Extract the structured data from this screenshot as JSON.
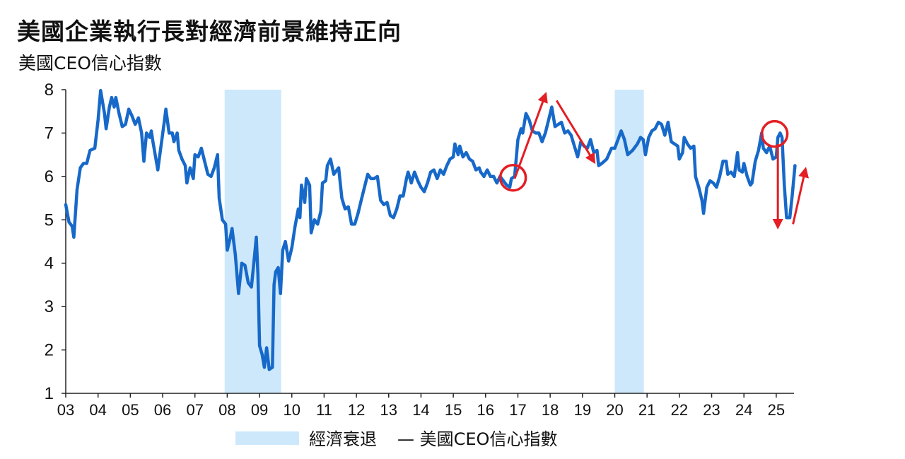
{
  "colors": {
    "line": "#1769C9",
    "recession": "#CDE8FB",
    "annotation": "#E31E24",
    "axis": "#222222"
  },
  "chart_data": {
    "type": "line",
    "title": "美國企業執行長對經濟前景維持正向",
    "subtitle": "美國CEO信心指數",
    "xlabel": "",
    "ylabel": "",
    "ylim": [
      1,
      8
    ],
    "yticks": [
      "1",
      "2",
      "3",
      "4",
      "5",
      "6",
      "7",
      "8"
    ],
    "xticks": [
      "03",
      "04",
      "05",
      "06",
      "07",
      "08",
      "09",
      "10",
      "11",
      "12",
      "13",
      "14",
      "15",
      "16",
      "17",
      "18",
      "19",
      "20",
      "21",
      "22",
      "23",
      "24",
      "25"
    ],
    "xlim": [
      2003.0,
      2025.55
    ],
    "grid": false,
    "legend": {
      "placement": "bottom-center",
      "recession_label": "經濟衰退",
      "series_label": "— 美國CEO信心指數"
    },
    "recessions": [
      [
        2007.92,
        2009.67
      ],
      [
        2020.0,
        2020.9
      ]
    ],
    "series": [
      {
        "name": "美國CEO信心指數",
        "points": [
          [
            2003.0,
            5.35
          ],
          [
            2003.1,
            4.95
          ],
          [
            2003.2,
            4.85
          ],
          [
            2003.25,
            4.6
          ],
          [
            2003.35,
            5.7
          ],
          [
            2003.45,
            6.2
          ],
          [
            2003.55,
            6.3
          ],
          [
            2003.65,
            6.3
          ],
          [
            2003.75,
            6.6
          ],
          [
            2003.9,
            6.65
          ],
          [
            2004.0,
            7.3
          ],
          [
            2004.08,
            7.98
          ],
          [
            2004.2,
            7.45
          ],
          [
            2004.25,
            7.1
          ],
          [
            2004.35,
            7.6
          ],
          [
            2004.42,
            7.82
          ],
          [
            2004.5,
            7.6
          ],
          [
            2004.55,
            7.82
          ],
          [
            2004.65,
            7.45
          ],
          [
            2004.75,
            7.15
          ],
          [
            2004.85,
            7.2
          ],
          [
            2004.95,
            7.55
          ],
          [
            2005.05,
            7.4
          ],
          [
            2005.15,
            7.2
          ],
          [
            2005.25,
            7.35
          ],
          [
            2005.35,
            7.0
          ],
          [
            2005.42,
            6.35
          ],
          [
            2005.5,
            7.0
          ],
          [
            2005.6,
            6.9
          ],
          [
            2005.65,
            7.05
          ],
          [
            2005.7,
            6.8
          ],
          [
            2005.85,
            6.15
          ],
          [
            2005.95,
            6.7
          ],
          [
            2006.05,
            7.25
          ],
          [
            2006.1,
            7.55
          ],
          [
            2006.2,
            7.0
          ],
          [
            2006.3,
            7.0
          ],
          [
            2006.35,
            6.8
          ],
          [
            2006.45,
            7.0
          ],
          [
            2006.5,
            6.6
          ],
          [
            2006.6,
            6.4
          ],
          [
            2006.7,
            6.25
          ],
          [
            2006.75,
            5.85
          ],
          [
            2006.85,
            6.2
          ],
          [
            2006.95,
            5.95
          ],
          [
            2007.0,
            6.5
          ],
          [
            2007.1,
            6.45
          ],
          [
            2007.2,
            6.65
          ],
          [
            2007.3,
            6.35
          ],
          [
            2007.4,
            6.05
          ],
          [
            2007.5,
            6.0
          ],
          [
            2007.6,
            6.2
          ],
          [
            2007.7,
            6.5
          ],
          [
            2007.75,
            5.5
          ],
          [
            2007.85,
            5.0
          ],
          [
            2007.95,
            4.9
          ],
          [
            2008.0,
            4.3
          ],
          [
            2008.1,
            4.6
          ],
          [
            2008.15,
            4.8
          ],
          [
            2008.25,
            4.2
          ],
          [
            2008.35,
            3.3
          ],
          [
            2008.45,
            4.0
          ],
          [
            2008.55,
            3.95
          ],
          [
            2008.65,
            3.55
          ],
          [
            2008.75,
            3.45
          ],
          [
            2008.85,
            4.2
          ],
          [
            2008.9,
            4.6
          ],
          [
            2008.95,
            3.75
          ],
          [
            2009.0,
            2.1
          ],
          [
            2009.08,
            1.9
          ],
          [
            2009.15,
            1.6
          ],
          [
            2009.22,
            2.05
          ],
          [
            2009.3,
            1.55
          ],
          [
            2009.4,
            1.6
          ],
          [
            2009.45,
            3.5
          ],
          [
            2009.5,
            3.8
          ],
          [
            2009.58,
            3.9
          ],
          [
            2009.65,
            3.3
          ],
          [
            2009.72,
            4.3
          ],
          [
            2009.8,
            4.5
          ],
          [
            2009.9,
            4.05
          ],
          [
            2010.0,
            4.35
          ],
          [
            2010.1,
            4.85
          ],
          [
            2010.2,
            5.25
          ],
          [
            2010.25,
            5.05
          ],
          [
            2010.3,
            5.8
          ],
          [
            2010.4,
            5.4
          ],
          [
            2010.45,
            5.95
          ],
          [
            2010.55,
            5.8
          ],
          [
            2010.6,
            4.7
          ],
          [
            2010.7,
            5.0
          ],
          [
            2010.8,
            4.9
          ],
          [
            2010.9,
            5.2
          ],
          [
            2010.95,
            5.85
          ],
          [
            2011.05,
            5.9
          ],
          [
            2011.1,
            6.25
          ],
          [
            2011.2,
            6.4
          ],
          [
            2011.3,
            6.05
          ],
          [
            2011.35,
            6.1
          ],
          [
            2011.45,
            6.2
          ],
          [
            2011.55,
            5.5
          ],
          [
            2011.65,
            5.25
          ],
          [
            2011.75,
            5.3
          ],
          [
            2011.85,
            4.9
          ],
          [
            2011.95,
            4.9
          ],
          [
            2012.05,
            5.15
          ],
          [
            2012.15,
            5.45
          ],
          [
            2012.25,
            5.75
          ],
          [
            2012.35,
            6.05
          ],
          [
            2012.45,
            5.95
          ],
          [
            2012.55,
            5.95
          ],
          [
            2012.65,
            6.0
          ],
          [
            2012.75,
            5.45
          ],
          [
            2012.85,
            5.35
          ],
          [
            2012.95,
            5.4
          ],
          [
            2013.05,
            5.1
          ],
          [
            2013.15,
            5.05
          ],
          [
            2013.25,
            5.25
          ],
          [
            2013.35,
            5.55
          ],
          [
            2013.45,
            5.55
          ],
          [
            2013.55,
            5.95
          ],
          [
            2013.6,
            6.1
          ],
          [
            2013.7,
            5.85
          ],
          [
            2013.8,
            6.1
          ],
          [
            2013.9,
            5.9
          ],
          [
            2014.0,
            5.75
          ],
          [
            2014.1,
            5.65
          ],
          [
            2014.2,
            5.85
          ],
          [
            2014.3,
            6.1
          ],
          [
            2014.4,
            6.15
          ],
          [
            2014.5,
            5.95
          ],
          [
            2014.6,
            6.15
          ],
          [
            2014.7,
            6.05
          ],
          [
            2014.8,
            6.25
          ],
          [
            2014.9,
            6.4
          ],
          [
            2015.0,
            6.45
          ],
          [
            2015.05,
            6.75
          ],
          [
            2015.15,
            6.5
          ],
          [
            2015.2,
            6.7
          ],
          [
            2015.3,
            6.45
          ],
          [
            2015.4,
            6.55
          ],
          [
            2015.5,
            6.4
          ],
          [
            2015.6,
            6.35
          ],
          [
            2015.7,
            6.15
          ],
          [
            2015.8,
            6.2
          ],
          [
            2015.85,
            6.1
          ],
          [
            2015.95,
            6.0
          ],
          [
            2016.05,
            6.15
          ],
          [
            2016.15,
            6.0
          ],
          [
            2016.25,
            6.0
          ],
          [
            2016.35,
            5.85
          ],
          [
            2016.45,
            6.0
          ],
          [
            2016.55,
            5.9
          ],
          [
            2016.65,
            5.8
          ],
          [
            2016.75,
            5.75
          ],
          [
            2016.8,
            5.95
          ],
          [
            2016.9,
            6.0
          ],
          [
            2017.0,
            6.85
          ],
          [
            2017.1,
            7.1
          ],
          [
            2017.15,
            7.0
          ],
          [
            2017.25,
            7.45
          ],
          [
            2017.35,
            7.3
          ],
          [
            2017.45,
            7.05
          ],
          [
            2017.55,
            7.0
          ],
          [
            2017.65,
            7.0
          ],
          [
            2017.75,
            6.8
          ],
          [
            2017.85,
            7.0
          ],
          [
            2017.95,
            7.3
          ],
          [
            2018.05,
            7.6
          ],
          [
            2018.15,
            7.15
          ],
          [
            2018.25,
            7.2
          ],
          [
            2018.35,
            7.25
          ],
          [
            2018.45,
            7.0
          ],
          [
            2018.55,
            7.05
          ],
          [
            2018.65,
            6.95
          ],
          [
            2018.75,
            6.7
          ],
          [
            2018.85,
            6.45
          ],
          [
            2018.95,
            6.8
          ],
          [
            2019.05,
            6.7
          ],
          [
            2019.15,
            6.65
          ],
          [
            2019.25,
            6.85
          ],
          [
            2019.35,
            6.55
          ],
          [
            2019.45,
            6.6
          ],
          [
            2019.5,
            6.25
          ],
          [
            2019.6,
            6.3
          ],
          [
            2019.75,
            6.4
          ],
          [
            2019.9,
            6.65
          ],
          [
            2020.0,
            6.65
          ],
          [
            2020.1,
            6.85
          ],
          [
            2020.2,
            7.05
          ],
          [
            2020.3,
            6.85
          ],
          [
            2020.4,
            6.5
          ],
          [
            2020.55,
            6.6
          ],
          [
            2020.7,
            6.75
          ],
          [
            2020.8,
            6.9
          ],
          [
            2020.88,
            6.85
          ],
          [
            2020.95,
            6.5
          ],
          [
            2021.05,
            6.9
          ],
          [
            2021.15,
            7.05
          ],
          [
            2021.25,
            7.1
          ],
          [
            2021.35,
            7.25
          ],
          [
            2021.45,
            7.2
          ],
          [
            2021.55,
            6.95
          ],
          [
            2021.65,
            7.25
          ],
          [
            2021.75,
            6.8
          ],
          [
            2021.85,
            6.75
          ],
          [
            2021.95,
            6.7
          ],
          [
            2022.0,
            6.4
          ],
          [
            2022.1,
            6.55
          ],
          [
            2022.15,
            6.9
          ],
          [
            2022.25,
            6.75
          ],
          [
            2022.35,
            6.65
          ],
          [
            2022.45,
            6.7
          ],
          [
            2022.5,
            6.0
          ],
          [
            2022.6,
            5.75
          ],
          [
            2022.7,
            5.45
          ],
          [
            2022.75,
            5.15
          ],
          [
            2022.85,
            5.75
          ],
          [
            2022.95,
            5.9
          ],
          [
            2023.05,
            5.85
          ],
          [
            2023.15,
            5.75
          ],
          [
            2023.25,
            6.0
          ],
          [
            2023.35,
            6.35
          ],
          [
            2023.45,
            6.35
          ],
          [
            2023.5,
            6.05
          ],
          [
            2023.6,
            6.1
          ],
          [
            2023.7,
            6.0
          ],
          [
            2023.8,
            6.55
          ],
          [
            2023.85,
            6.15
          ],
          [
            2023.95,
            6.1
          ],
          [
            2024.0,
            6.3
          ],
          [
            2024.1,
            6.0
          ],
          [
            2024.2,
            5.8
          ],
          [
            2024.25,
            5.85
          ],
          [
            2024.35,
            6.35
          ],
          [
            2024.45,
            6.6
          ],
          [
            2024.55,
            7.0
          ],
          [
            2024.6,
            6.65
          ],
          [
            2024.7,
            6.55
          ],
          [
            2024.8,
            6.7
          ],
          [
            2024.9,
            6.4
          ],
          [
            2025.0,
            6.45
          ],
          [
            2025.05,
            6.9
          ],
          [
            2025.12,
            7.0
          ],
          [
            2025.18,
            6.9
          ],
          [
            2025.25,
            5.8
          ],
          [
            2025.32,
            5.05
          ],
          [
            2025.42,
            5.05
          ],
          [
            2025.5,
            5.6
          ],
          [
            2025.58,
            6.25
          ]
        ]
      }
    ],
    "annotations": {
      "circles": [
        [
          2016.85,
          5.97
        ],
        [
          2024.95,
          6.98
        ]
      ],
      "arrows": [
        [
          [
            2016.9,
            5.95
          ],
          [
            2017.85,
            7.88
          ]
        ],
        [
          [
            2018.2,
            7.75
          ],
          [
            2019.35,
            6.35
          ]
        ],
        [
          [
            2025.05,
            6.75
          ],
          [
            2025.05,
            4.85
          ]
        ],
        [
          [
            2025.52,
            4.9
          ],
          [
            2025.9,
            6.15
          ]
        ]
      ]
    }
  }
}
